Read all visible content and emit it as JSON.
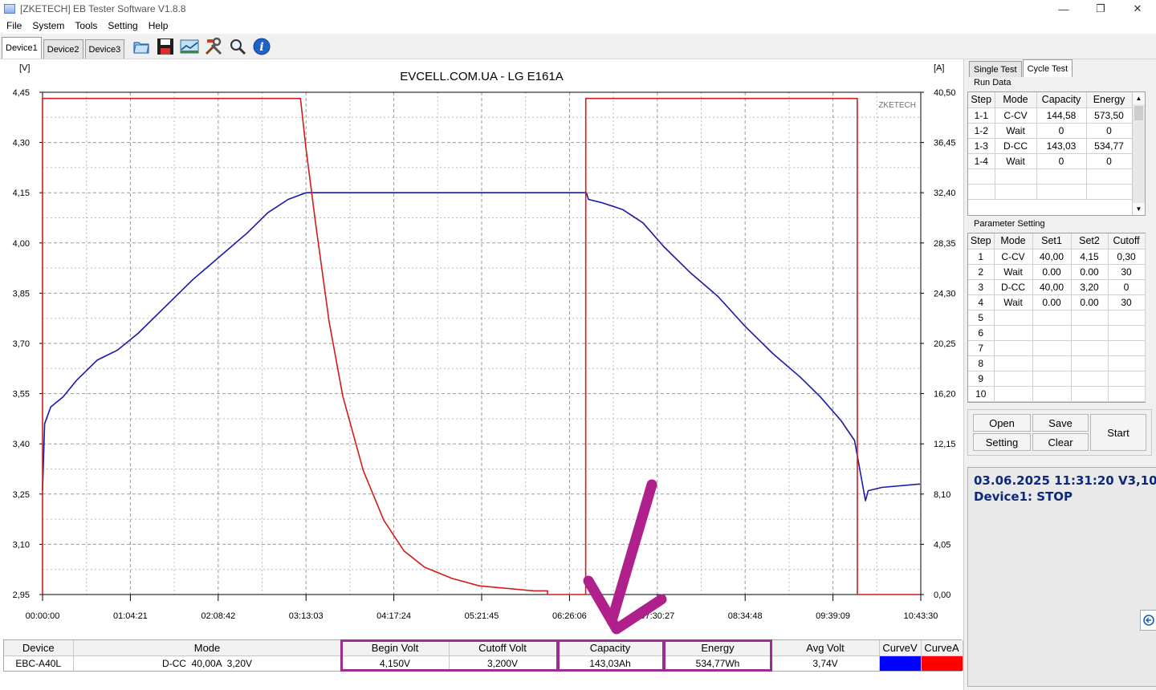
{
  "window": {
    "title": "[ZKETECH] EB Tester Software V1.8.8"
  },
  "menu": [
    "File",
    "System",
    "Tools",
    "Setting",
    "Help"
  ],
  "device_tabs": [
    "Device1",
    "Device2",
    "Device3"
  ],
  "toolbar_icons": [
    "folder-icon",
    "save-icon",
    "chart-icon",
    "tools-icon",
    "search-icon",
    "info-icon"
  ],
  "chart": {
    "title": "EVCELL.COM.UA - LG E161A",
    "watermark": "ZKETECH",
    "left_unit": "[V]",
    "right_unit": "[A]",
    "left_ticks": [
      "4,45",
      "4,30",
      "4,15",
      "4,00",
      "3,85",
      "3,70",
      "3,55",
      "3,40",
      "3,25",
      "3,10",
      "2,95"
    ],
    "right_ticks": [
      "40,50",
      "36,45",
      "32,40",
      "28,35",
      "24,30",
      "20,25",
      "16,20",
      "12,15",
      "8,10",
      "4,05",
      "0,00"
    ],
    "x_ticks": [
      "00:00:00",
      "01:04:21",
      "02:08:42",
      "03:13:03",
      "04:17:24",
      "05:21:45",
      "06:26:06",
      "07:30:27",
      "08:34:48",
      "09:39:09",
      "10:43:30"
    ]
  },
  "chart_data": {
    "type": "line",
    "title": "EVCELL.COM.UA - LG E161A",
    "xlabel": "",
    "ylabel": "[V]",
    "y2label": "[A]",
    "x_unit": "hh:mm:ss",
    "xlim": [
      "00:00:00",
      "10:43:30"
    ],
    "ylim": [
      2.95,
      4.45
    ],
    "y2lim": [
      0,
      40.5
    ],
    "grid": true,
    "series": [
      {
        "axis": "left",
        "color": "#1a1aa8",
        "x": [
          "00:00:00",
          "00:01:30",
          "00:06:00",
          "00:15:00",
          "00:25:00",
          "00:40:00",
          "00:55:00",
          "01:10:00",
          "01:30:00",
          "01:50:00",
          "02:10:00",
          "02:30:00",
          "02:45:00",
          "03:00:00",
          "03:13:00",
          "04:00:00",
          "05:00:00",
          "06:00:00",
          "06:38:30",
          "06:40:00",
          "06:50:00",
          "07:05:00",
          "07:20:00",
          "07:35:00",
          "07:55:00",
          "08:15:00",
          "08:35:00",
          "08:55:00",
          "09:15:00",
          "09:30:00",
          "09:45:00",
          "09:55:00",
          "10:03:00",
          "10:05:00",
          "10:15:00",
          "10:43:00"
        ],
        "values": [
          3.26,
          3.46,
          3.51,
          3.54,
          3.59,
          3.65,
          3.68,
          3.73,
          3.81,
          3.89,
          3.96,
          4.03,
          4.09,
          4.13,
          4.15,
          4.15,
          4.15,
          4.15,
          4.15,
          4.13,
          4.12,
          4.1,
          4.06,
          3.99,
          3.91,
          3.84,
          3.75,
          3.67,
          3.6,
          3.54,
          3.47,
          3.41,
          3.23,
          3.26,
          3.27,
          3.28
        ]
      },
      {
        "axis": "right",
        "color": "#d41a1a",
        "x": [
          "00:00:00",
          "00:00:01",
          "03:09:00",
          "03:13:00",
          "03:20:00",
          "03:30:00",
          "03:40:00",
          "03:55:00",
          "04:10:00",
          "04:25:00",
          "04:40:00",
          "05:00:00",
          "05:20:00",
          "05:40:00",
          "06:00:00",
          "06:10:00",
          "06:10:01",
          "06:38:00",
          "06:38:01",
          "09:57:00",
          "09:57:01",
          "10:43:00"
        ],
        "values": [
          0,
          40.0,
          40.0,
          36.0,
          30.0,
          22.0,
          16.0,
          10.0,
          6.0,
          3.5,
          2.2,
          1.3,
          0.7,
          0.5,
          0.3,
          0.3,
          0,
          0,
          40.0,
          40.0,
          0,
          0
        ]
      }
    ]
  },
  "status_table": {
    "headers": [
      "Device",
      "Mode",
      "Begin Volt",
      "Cutoff Volt",
      "Capacity",
      "Energy",
      "Avg Volt",
      "CurveV",
      "CurveA"
    ],
    "values": [
      "EBC-A40L",
      "D-CC  40,00A  3,20V",
      "4,150V",
      "3,200V",
      "143,03Ah",
      "534,77Wh",
      "3,74V",
      "",
      ""
    ],
    "curve_colors": [
      "#0000ff",
      "#ff0000"
    ]
  },
  "right_panel": {
    "tabs": [
      "Single Test",
      "Cycle Test"
    ],
    "run_data": {
      "label": "Run Data",
      "headers": [
        "Step",
        "Mode",
        "Capacity",
        "Energy"
      ],
      "rows": [
        [
          "1-1",
          "C-CV",
          "144,58",
          "573,50"
        ],
        [
          "1-2",
          "Wait",
          "0",
          "0"
        ],
        [
          "1-3",
          "D-CC",
          "143,03",
          "534,77"
        ],
        [
          "1-4",
          "Wait",
          "0",
          "0"
        ]
      ]
    },
    "parameter_setting": {
      "label": "Parameter Setting",
      "headers": [
        "Step",
        "Mode",
        "Set1",
        "Set2",
        "Cutoff"
      ],
      "rows": [
        [
          "1",
          "C-CV",
          "40,00",
          "4,15",
          "0,30"
        ],
        [
          "2",
          "Wait",
          "0.00",
          "0.00",
          "30"
        ],
        [
          "3",
          "D-CC",
          "40,00",
          "3,20",
          "0"
        ],
        [
          "4",
          "Wait",
          "0.00",
          "0.00",
          "30"
        ],
        [
          "5",
          "",
          "",
          "",
          ""
        ],
        [
          "6",
          "",
          "",
          "",
          ""
        ],
        [
          "7",
          "",
          "",
          "",
          ""
        ],
        [
          "8",
          "",
          "",
          "",
          ""
        ],
        [
          "9",
          "",
          "",
          "",
          ""
        ],
        [
          "10",
          "",
          "",
          "",
          ""
        ]
      ]
    },
    "buttons": {
      "open": "Open",
      "save": "Save",
      "setting": "Setting",
      "clear": "Clear",
      "start": "Start"
    },
    "info": {
      "line1": "03.06.2025 11:31:20  V3,10",
      "line2": "Device1: STOP"
    }
  },
  "annotation": {
    "highlight_color": "#9b2d91",
    "arrow_color": "#b0208c"
  }
}
